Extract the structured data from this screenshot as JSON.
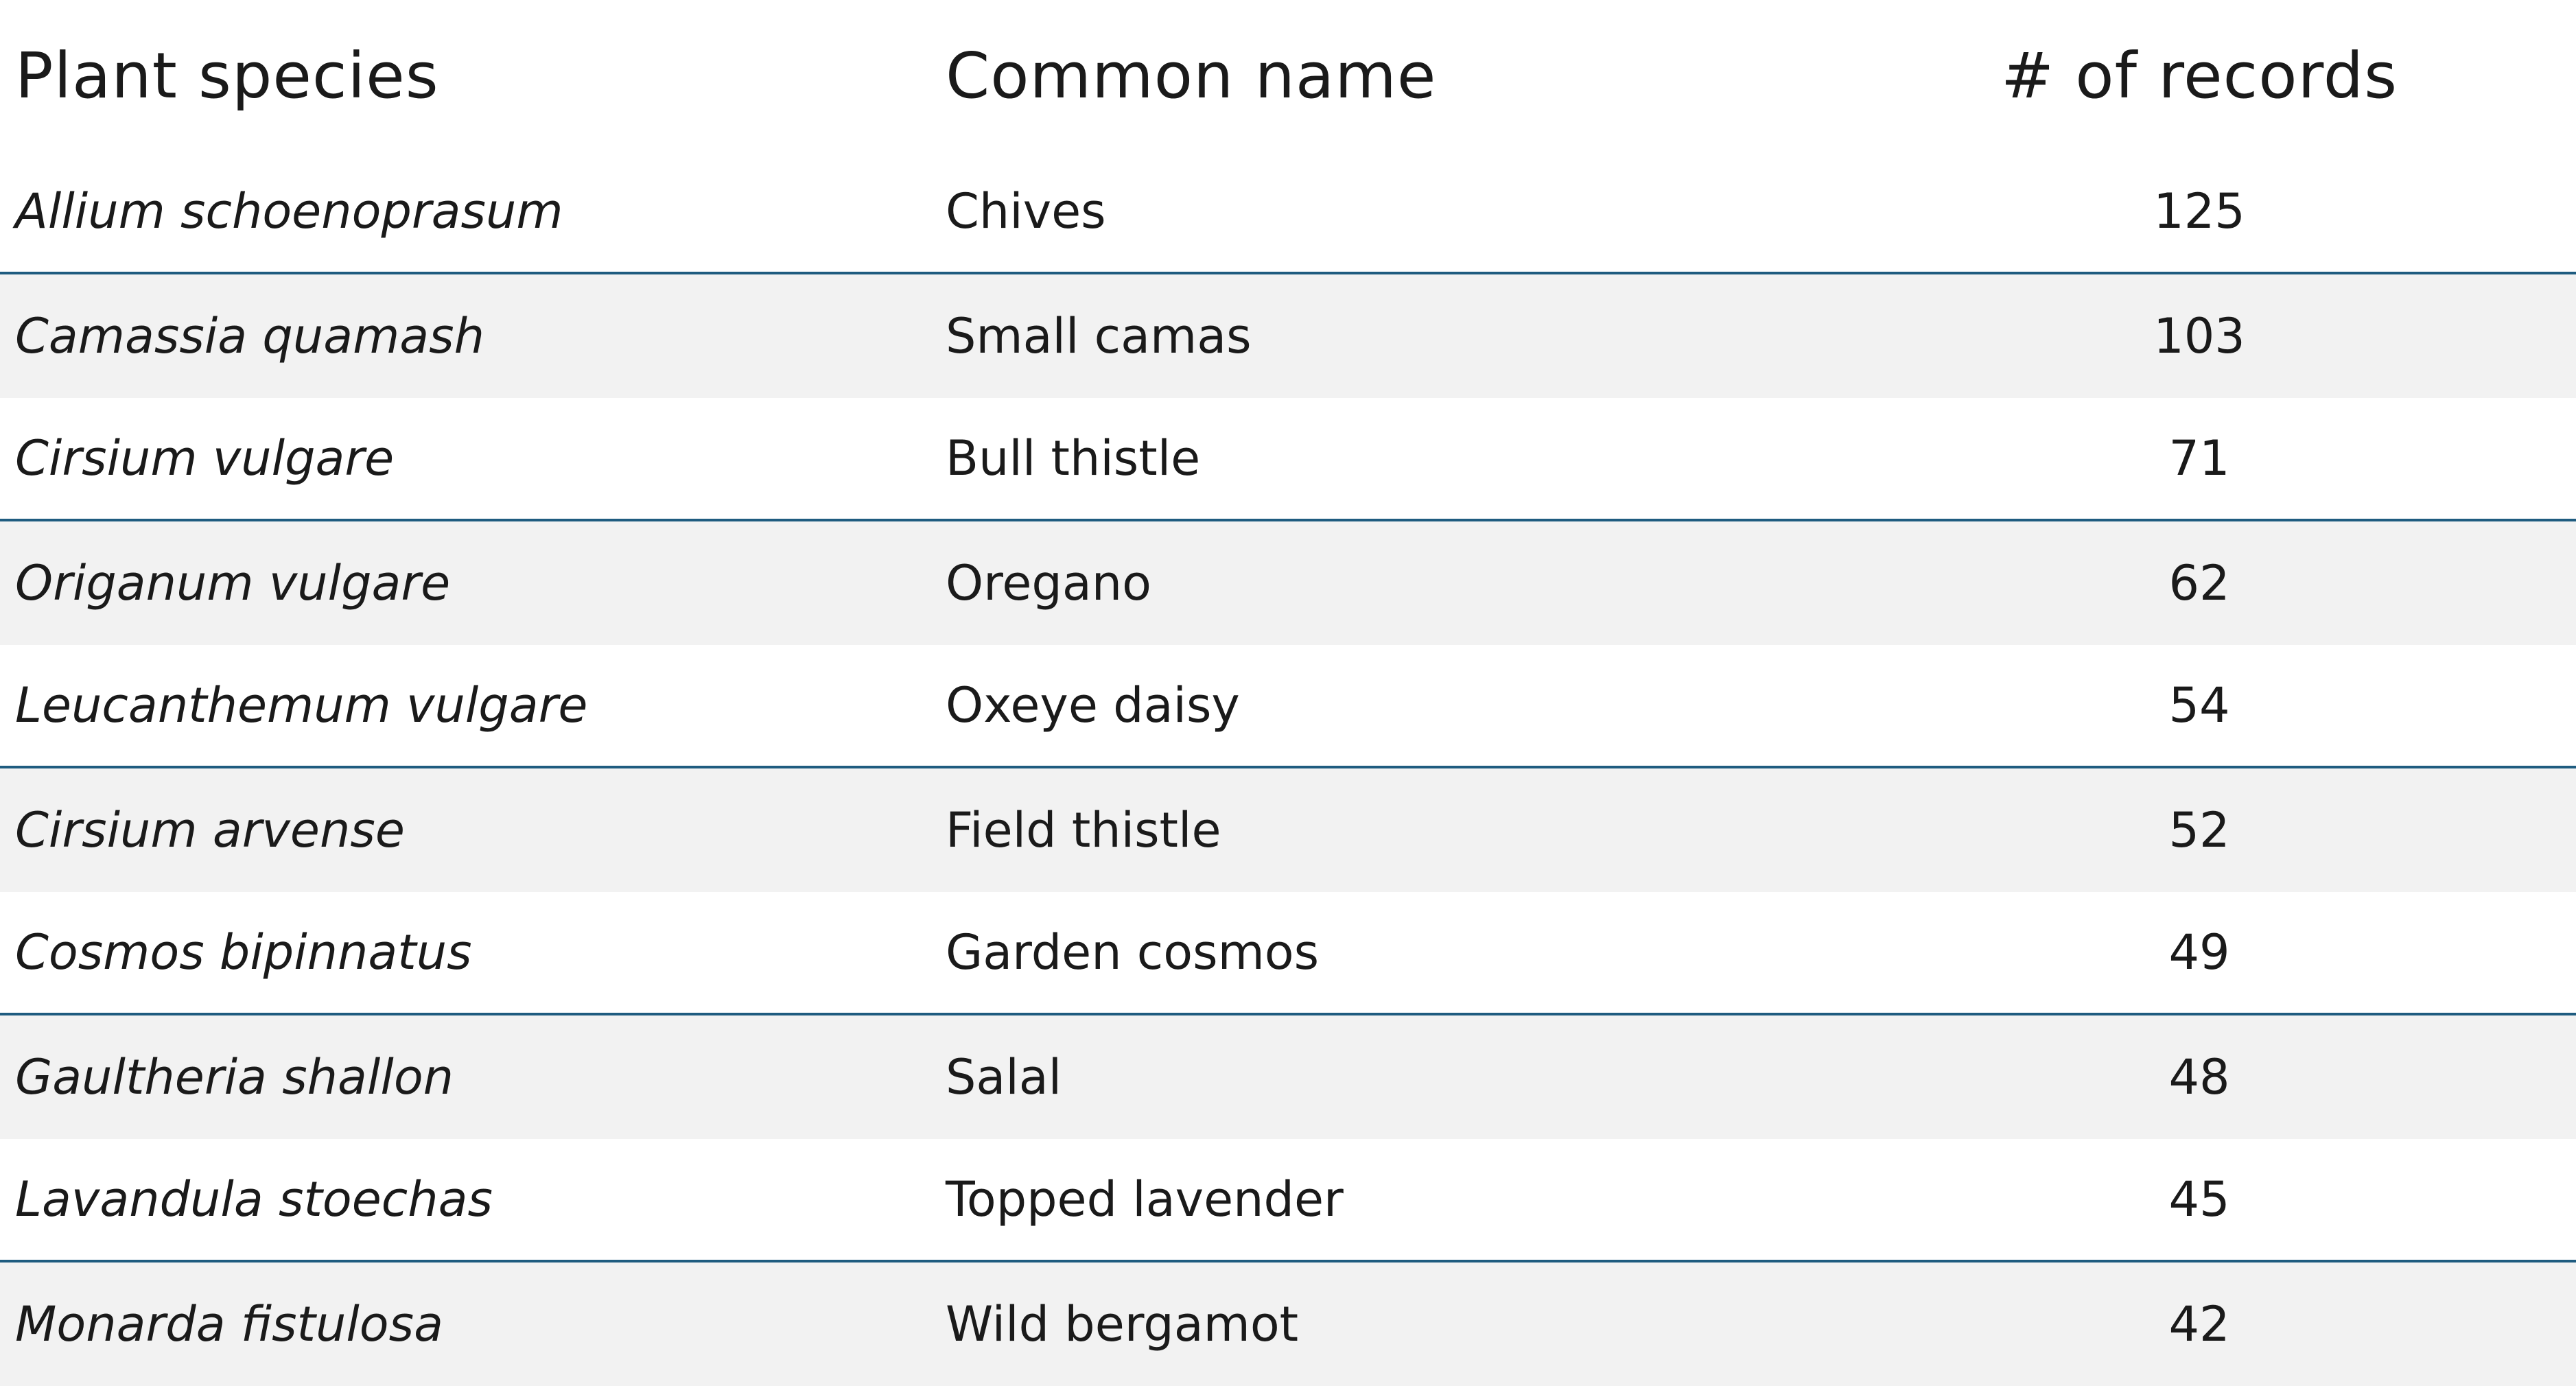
{
  "table": {
    "headers": {
      "species": "Plant species",
      "common": "Common name",
      "records": "# of records"
    },
    "rows": [
      {
        "species": "Allium schoenoprasum",
        "common": "Chives",
        "records": "125"
      },
      {
        "species": "Camassia quamash",
        "common": "Small camas",
        "records": "103"
      },
      {
        "species": "Cirsium vulgare",
        "common": "Bull thistle",
        "records": "71"
      },
      {
        "species": "Origanum vulgare",
        "common": "Oregano",
        "records": "62"
      },
      {
        "species": "Leucanthemum vulgare",
        "common": "Oxeye daisy",
        "records": "54"
      },
      {
        "species": "Cirsium arvense",
        "common": "Field thistle",
        "records": "52"
      },
      {
        "species": "Cosmos bipinnatus",
        "common": "Garden cosmos",
        "records": "49"
      },
      {
        "species": "Gaultheria shallon",
        "common": "Salal",
        "records": "48"
      },
      {
        "species": "Lavandula stoechas",
        "common": "Topped lavender",
        "records": "45"
      },
      {
        "species": "Monarda fistulosa",
        "common": "Wild bergamot",
        "records": "42"
      }
    ]
  },
  "colors": {
    "rule": "#1f5c80",
    "band": "#f2f2f2",
    "text": "#1a1a1a"
  }
}
